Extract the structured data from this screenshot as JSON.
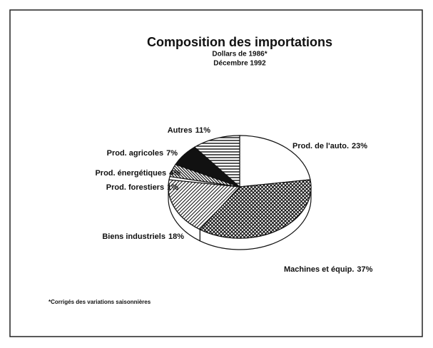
{
  "chart_data": {
    "type": "pie",
    "title": "Composition des importations",
    "subtitle": [
      "Dollars de 1986*",
      "Décembre 1992"
    ],
    "footnote": "*Corrigés des variations saisonnières",
    "categories": [
      "Prod. de l'auto.",
      "Machines et équip.",
      "Biens industriels",
      "Prod. forestiers",
      "Prod. énergétiques",
      "Prod. agricoles",
      "Autres"
    ],
    "values": [
      23,
      37,
      18,
      1,
      4,
      7,
      11
    ],
    "value_labels": [
      "23%",
      "37%",
      "18%",
      "1%",
      "4%",
      "7%",
      "11%"
    ]
  }
}
